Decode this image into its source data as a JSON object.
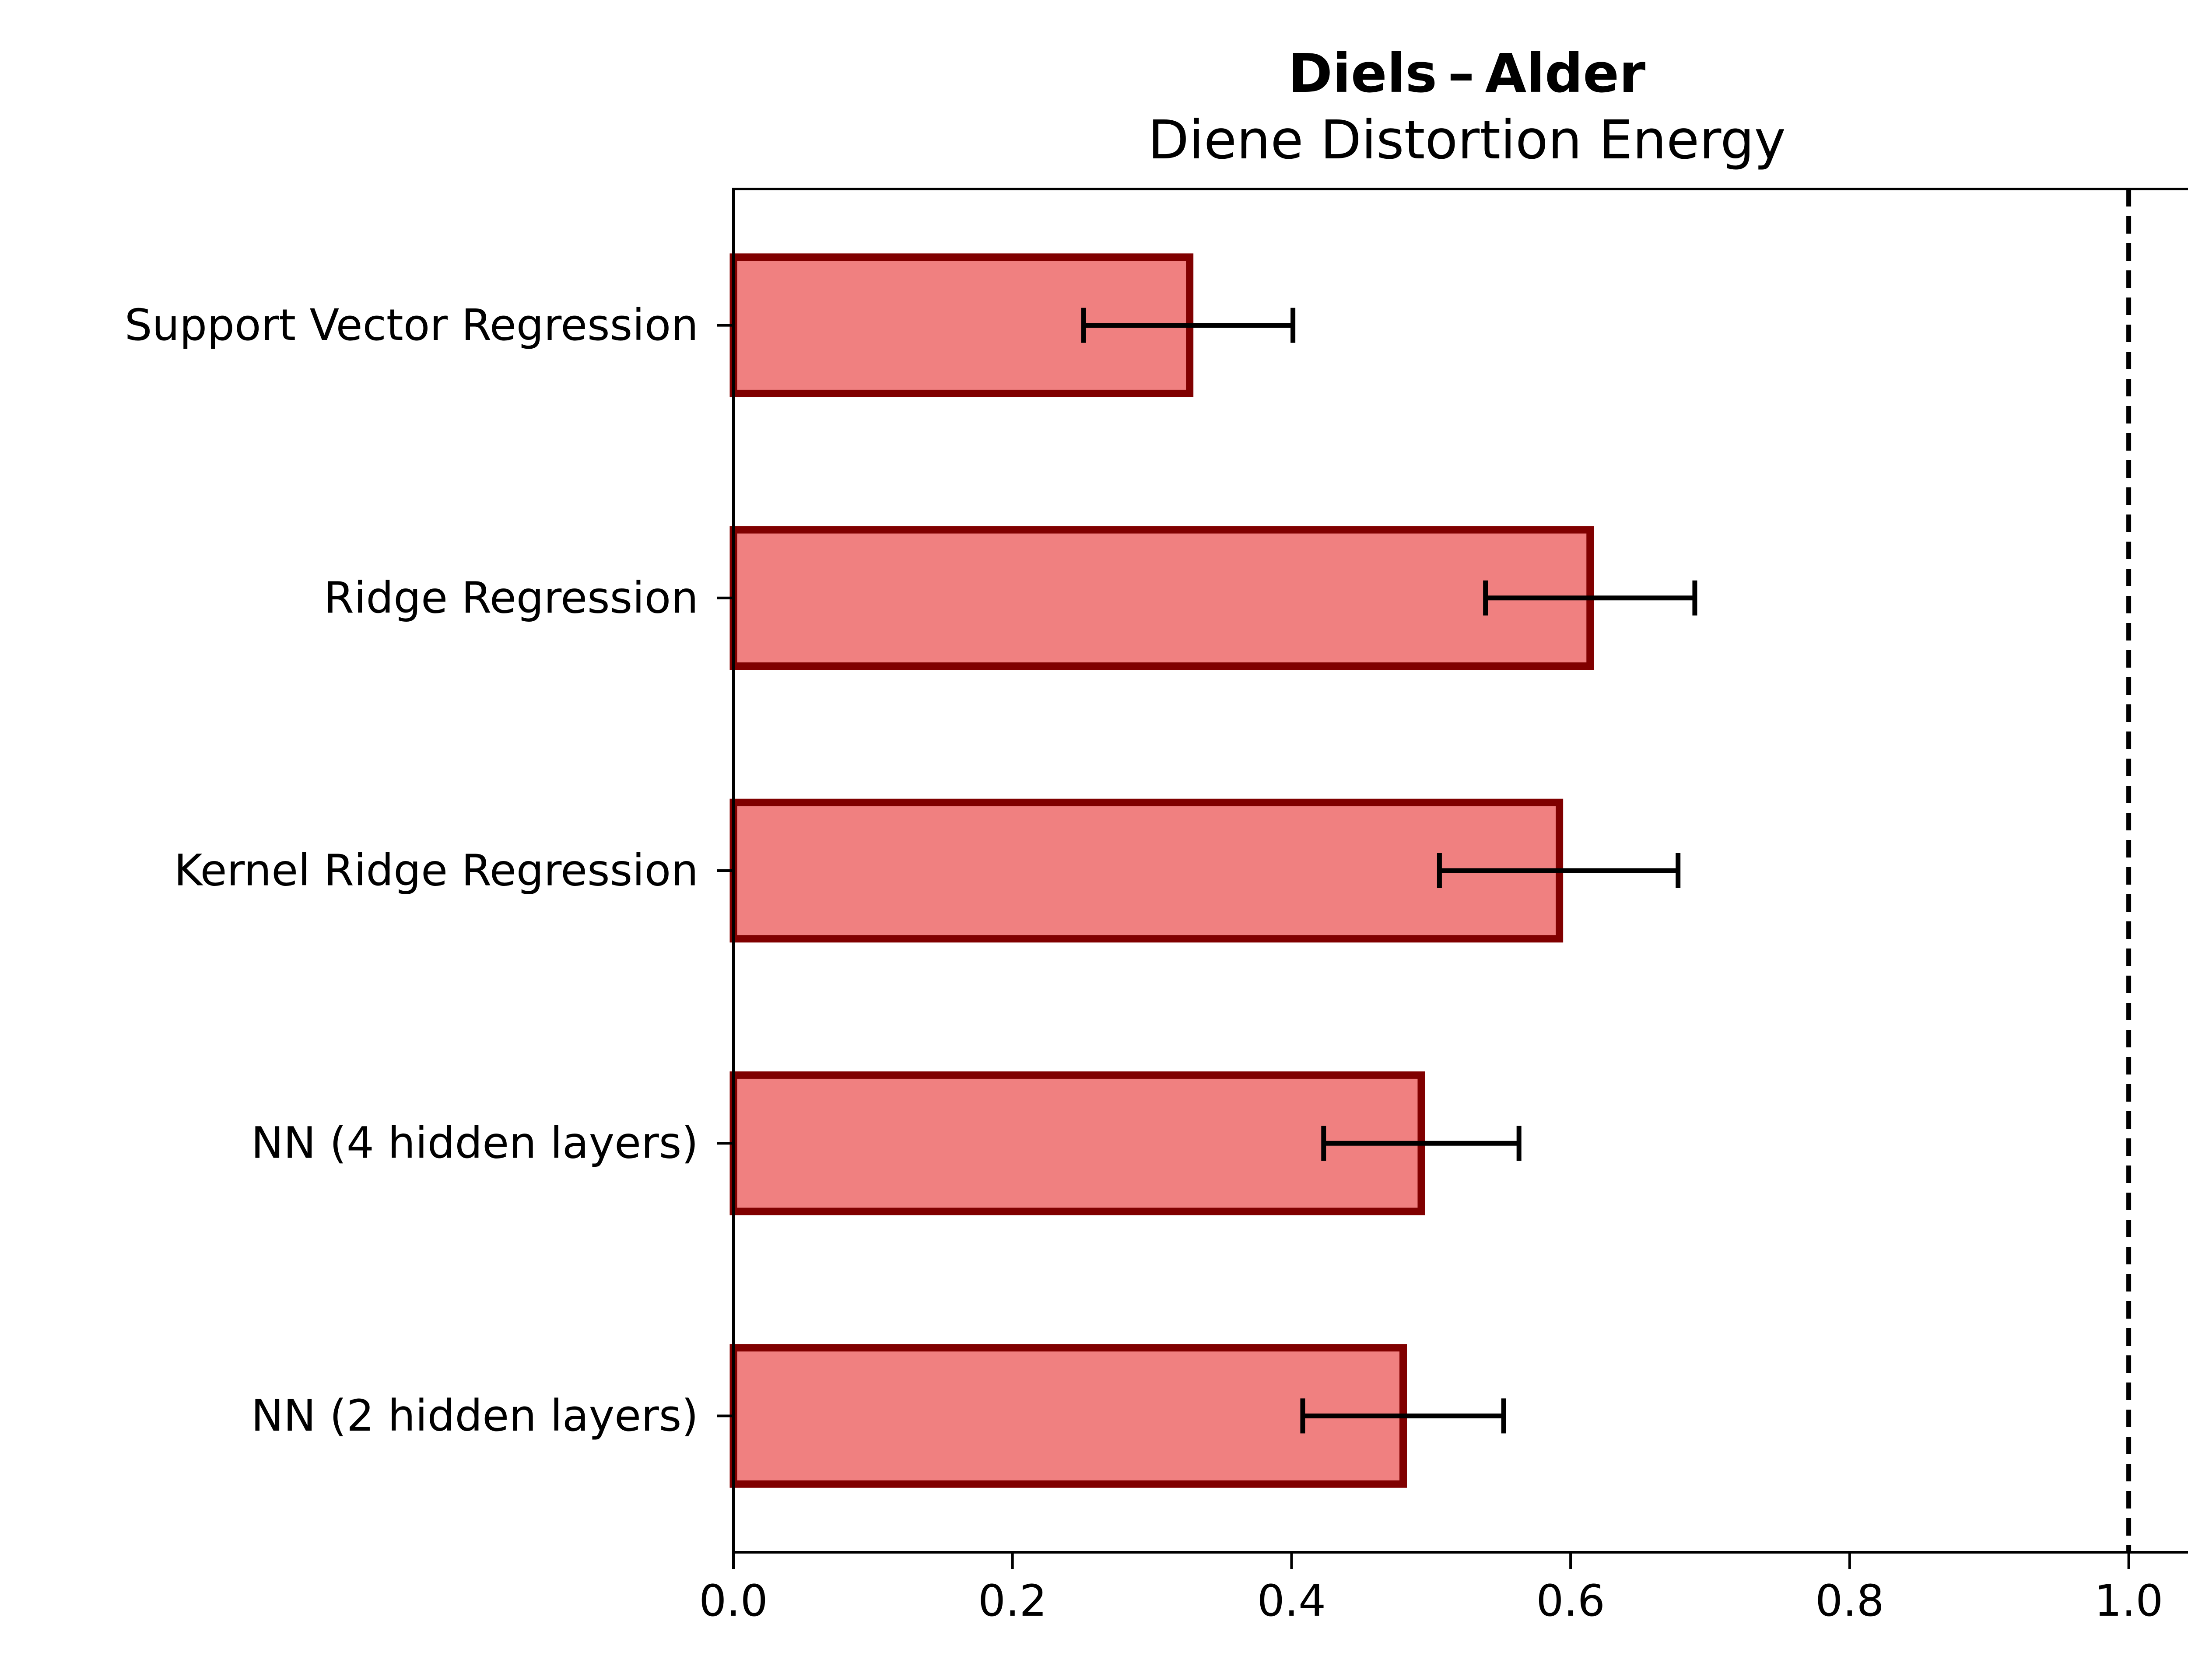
{
  "chart_data": {
    "type": "bar",
    "orientation": "horizontal",
    "title": "Diels – Alder",
    "subtitle": "Diene Distortion Energy",
    "xlabel": "",
    "ylabel": "",
    "categories": [
      "Support Vector Regression",
      "Ridge Regression",
      "Kernel Ridge Regression",
      "NN (4 hidden layers)",
      "NN (2 hidden layers)"
    ],
    "values": [
      0.327,
      0.614,
      0.592,
      0.493,
      0.48
    ],
    "error_low": [
      0.251,
      0.539,
      0.506,
      0.423,
      0.408
    ],
    "error_high": [
      0.401,
      0.689,
      0.677,
      0.563,
      0.552
    ],
    "xlim": [
      0.0,
      1.05
    ],
    "xticks": [
      "0.0",
      "0.2",
      "0.4",
      "0.6",
      "0.8",
      "1.0"
    ],
    "xtick_values": [
      0.0,
      0.2,
      0.4,
      0.6,
      0.8,
      1.0
    ],
    "reference_line": {
      "x": 1.0,
      "style": "dashed",
      "color": "#000000"
    },
    "bar_fill": "#f08080",
    "bar_edge": "#800000",
    "grid": false,
    "legend": "none"
  }
}
